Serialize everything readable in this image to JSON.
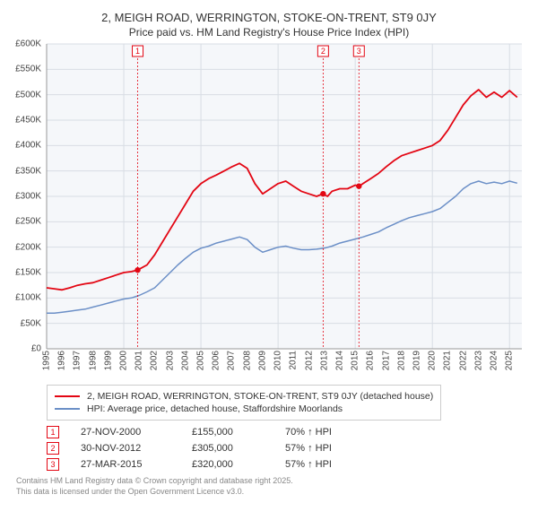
{
  "title_line1": "2, MEIGH ROAD, WERRINGTON, STOKE-ON-TRENT, ST9 0JY",
  "title_line2": "Price paid vs. HM Land Registry's House Price Index (HPI)",
  "chart": {
    "type": "line",
    "background_color": "#f5f7fa",
    "grid_color": "#d8dde4",
    "x_min": 1995,
    "x_max": 2025.8,
    "y_min": 0,
    "y_max": 600000,
    "y_ticks": [
      0,
      50000,
      100000,
      150000,
      200000,
      250000,
      300000,
      350000,
      400000,
      450000,
      500000,
      550000,
      600000
    ],
    "y_tick_labels": [
      "£0",
      "£50K",
      "£100K",
      "£150K",
      "£200K",
      "£250K",
      "£300K",
      "£350K",
      "£400K",
      "£450K",
      "£500K",
      "£550K",
      "£600K"
    ],
    "x_ticks": [
      1995,
      1996,
      1997,
      1998,
      1999,
      2000,
      2001,
      2002,
      2003,
      2004,
      2005,
      2006,
      2007,
      2008,
      2009,
      2010,
      2011,
      2012,
      2013,
      2014,
      2015,
      2016,
      2017,
      2018,
      2019,
      2020,
      2021,
      2022,
      2023,
      2024,
      2025
    ],
    "x_grid_start": 2000,
    "label_fontsize": 10,
    "series": [
      {
        "name": "property",
        "label": "2, MEIGH ROAD, WERRINGTON, STOKE-ON-TRENT, ST9 0JY (detached house)",
        "color": "#e30613",
        "line_width": 1.8,
        "points": [
          [
            1995,
            120000
          ],
          [
            1995.5,
            118000
          ],
          [
            1996,
            116000
          ],
          [
            1996.5,
            120000
          ],
          [
            1997,
            125000
          ],
          [
            1997.5,
            128000
          ],
          [
            1998,
            130000
          ],
          [
            1998.5,
            135000
          ],
          [
            1999,
            140000
          ],
          [
            1999.5,
            145000
          ],
          [
            2000,
            150000
          ],
          [
            2000.5,
            152000
          ],
          [
            2000.9,
            155000
          ],
          [
            2001.5,
            165000
          ],
          [
            2002,
            185000
          ],
          [
            2002.5,
            210000
          ],
          [
            2003,
            235000
          ],
          [
            2003.5,
            260000
          ],
          [
            2004,
            285000
          ],
          [
            2004.5,
            310000
          ],
          [
            2005,
            325000
          ],
          [
            2005.5,
            335000
          ],
          [
            2006,
            342000
          ],
          [
            2006.5,
            350000
          ],
          [
            2007,
            358000
          ],
          [
            2007.5,
            365000
          ],
          [
            2008,
            355000
          ],
          [
            2008.5,
            325000
          ],
          [
            2009,
            305000
          ],
          [
            2009.5,
            315000
          ],
          [
            2010,
            325000
          ],
          [
            2010.5,
            330000
          ],
          [
            2011,
            320000
          ],
          [
            2011.5,
            310000
          ],
          [
            2012,
            305000
          ],
          [
            2012.5,
            300000
          ],
          [
            2012.9,
            305000
          ],
          [
            2013.2,
            300000
          ],
          [
            2013.5,
            310000
          ],
          [
            2014,
            315000
          ],
          [
            2014.5,
            315000
          ],
          [
            2015,
            322000
          ],
          [
            2015.25,
            320000
          ],
          [
            2015.5,
            325000
          ],
          [
            2016,
            335000
          ],
          [
            2016.5,
            345000
          ],
          [
            2017,
            358000
          ],
          [
            2017.5,
            370000
          ],
          [
            2018,
            380000
          ],
          [
            2018.5,
            385000
          ],
          [
            2019,
            390000
          ],
          [
            2019.5,
            395000
          ],
          [
            2020,
            400000
          ],
          [
            2020.5,
            410000
          ],
          [
            2021,
            430000
          ],
          [
            2021.5,
            455000
          ],
          [
            2022,
            480000
          ],
          [
            2022.5,
            498000
          ],
          [
            2023,
            510000
          ],
          [
            2023.5,
            495000
          ],
          [
            2024,
            505000
          ],
          [
            2024.5,
            495000
          ],
          [
            2025,
            508000
          ],
          [
            2025.5,
            495000
          ]
        ]
      },
      {
        "name": "hpi",
        "label": "HPI: Average price, detached house, Staffordshire Moorlands",
        "color": "#6b8fc7",
        "line_width": 1.5,
        "points": [
          [
            1995,
            70000
          ],
          [
            1995.5,
            70000
          ],
          [
            1996,
            72000
          ],
          [
            1996.5,
            74000
          ],
          [
            1997,
            76000
          ],
          [
            1997.5,
            78000
          ],
          [
            1998,
            82000
          ],
          [
            1998.5,
            86000
          ],
          [
            1999,
            90000
          ],
          [
            1999.5,
            94000
          ],
          [
            2000,
            98000
          ],
          [
            2000.5,
            100000
          ],
          [
            2001,
            105000
          ],
          [
            2001.5,
            112000
          ],
          [
            2002,
            120000
          ],
          [
            2002.5,
            135000
          ],
          [
            2003,
            150000
          ],
          [
            2003.5,
            165000
          ],
          [
            2004,
            178000
          ],
          [
            2004.5,
            190000
          ],
          [
            2005,
            198000
          ],
          [
            2005.5,
            202000
          ],
          [
            2006,
            208000
          ],
          [
            2006.5,
            212000
          ],
          [
            2007,
            216000
          ],
          [
            2007.5,
            220000
          ],
          [
            2008,
            215000
          ],
          [
            2008.5,
            200000
          ],
          [
            2009,
            190000
          ],
          [
            2009.5,
            195000
          ],
          [
            2010,
            200000
          ],
          [
            2010.5,
            202000
          ],
          [
            2011,
            198000
          ],
          [
            2011.5,
            195000
          ],
          [
            2012,
            195000
          ],
          [
            2012.5,
            196000
          ],
          [
            2013,
            198000
          ],
          [
            2013.5,
            202000
          ],
          [
            2014,
            208000
          ],
          [
            2014.5,
            212000
          ],
          [
            2015,
            216000
          ],
          [
            2015.5,
            220000
          ],
          [
            2016,
            225000
          ],
          [
            2016.5,
            230000
          ],
          [
            2017,
            238000
          ],
          [
            2017.5,
            245000
          ],
          [
            2018,
            252000
          ],
          [
            2018.5,
            258000
          ],
          [
            2019,
            262000
          ],
          [
            2019.5,
            266000
          ],
          [
            2020,
            270000
          ],
          [
            2020.5,
            276000
          ],
          [
            2021,
            288000
          ],
          [
            2021.5,
            300000
          ],
          [
            2022,
            315000
          ],
          [
            2022.5,
            325000
          ],
          [
            2023,
            330000
          ],
          [
            2023.5,
            325000
          ],
          [
            2024,
            328000
          ],
          [
            2024.5,
            325000
          ],
          [
            2025,
            330000
          ],
          [
            2025.5,
            326000
          ]
        ]
      }
    ],
    "sale_markers": [
      {
        "n": "1",
        "year": 2000.9,
        "price": 155000,
        "color": "#e30613"
      },
      {
        "n": "2",
        "year": 2012.92,
        "price": 305000,
        "color": "#e30613"
      },
      {
        "n": "3",
        "year": 2015.24,
        "price": 320000,
        "color": "#e30613"
      }
    ]
  },
  "sales": [
    {
      "n": "1",
      "date": "27-NOV-2000",
      "price": "£155,000",
      "diff": "70% ↑ HPI",
      "color": "#e30613"
    },
    {
      "n": "2",
      "date": "30-NOV-2012",
      "price": "£305,000",
      "diff": "57% ↑ HPI",
      "color": "#e30613"
    },
    {
      "n": "3",
      "date": "27-MAR-2015",
      "price": "£320,000",
      "diff": "57% ↑ HPI",
      "color": "#e30613"
    }
  ],
  "footer_line1": "Contains HM Land Registry data © Crown copyright and database right 2025.",
  "footer_line2": "This data is licensed under the Open Government Licence v3.0."
}
